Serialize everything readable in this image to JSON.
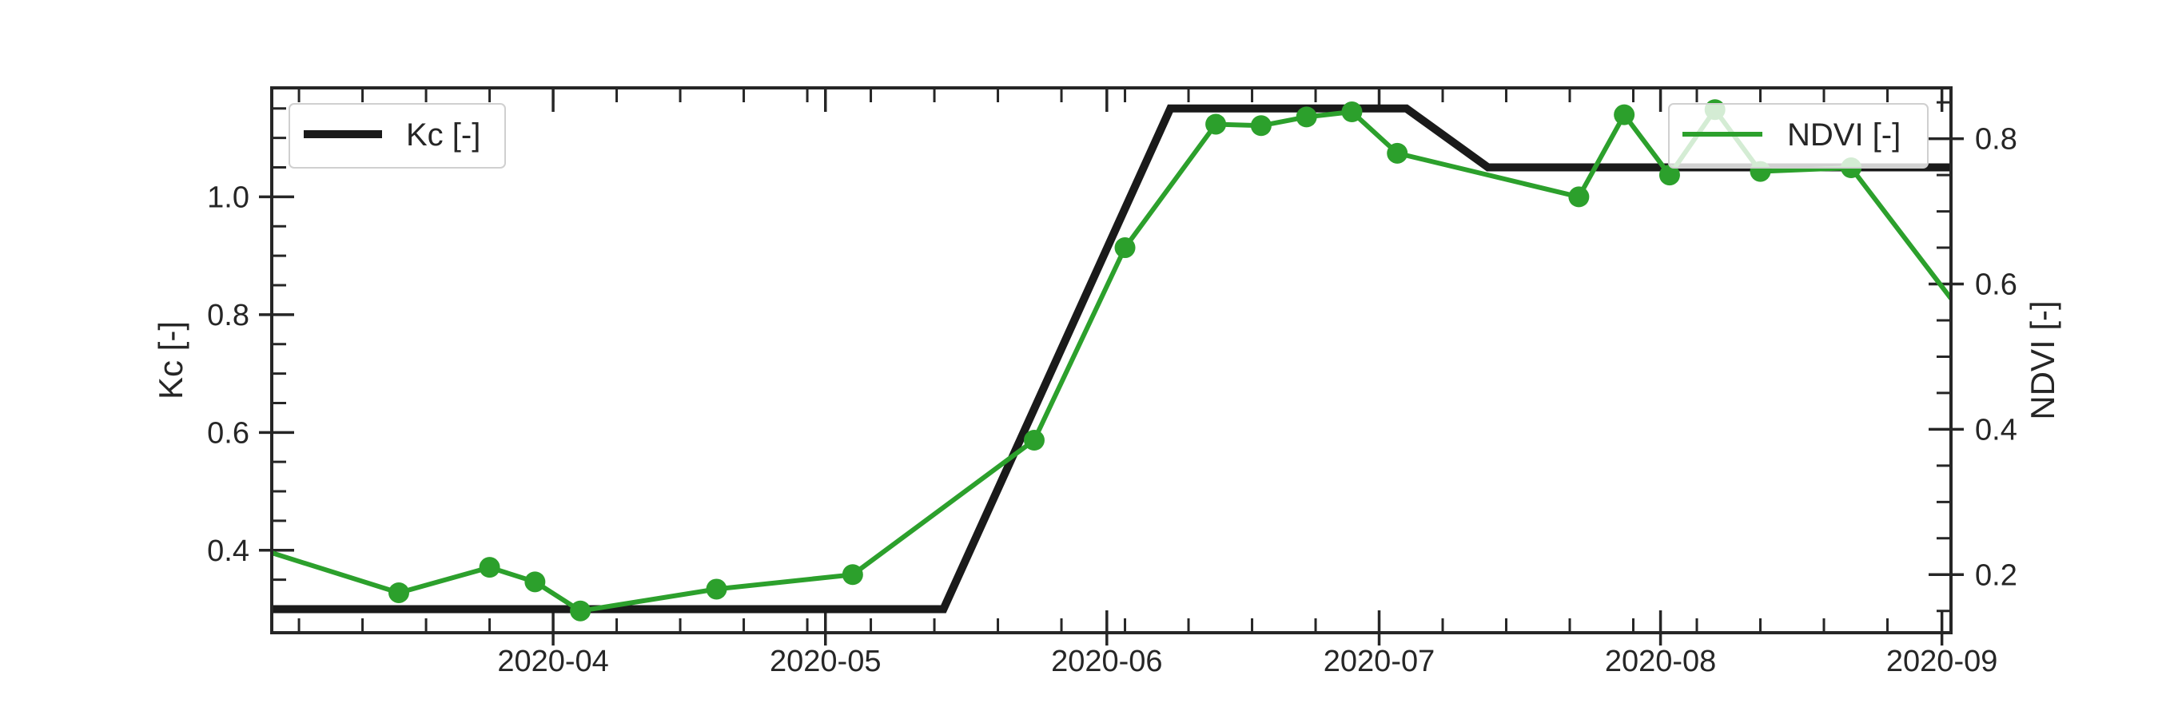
{
  "chart_data": {
    "type": "line",
    "x_axis": {
      "type": "date",
      "range": [
        "2020-03-01",
        "2020-09-02"
      ],
      "ticks": [
        "2020-04-01",
        "2020-05-01",
        "2020-06-01",
        "2020-07-01",
        "2020-08-01",
        "2020-09-01"
      ],
      "tick_labels": [
        "2020-04",
        "2020-05",
        "2020-06",
        "2020-07",
        "2020-08",
        "2020-09"
      ]
    },
    "y_left": {
      "label": "Kc [-]",
      "range": [
        0.26,
        1.185
      ],
      "ticks": [
        0.4,
        0.6,
        0.8,
        1.0
      ],
      "tick_labels": [
        "0.4",
        "0.6",
        "0.8",
        "1.0"
      ]
    },
    "y_right": {
      "label": "NDVI [-]",
      "range": [
        0.12,
        0.87
      ],
      "ticks": [
        0.2,
        0.4,
        0.6,
        0.8
      ],
      "tick_labels": [
        "0.2",
        "0.4",
        "0.6",
        "0.8"
      ]
    },
    "series": [
      {
        "name": "Kc [-]",
        "axis": "left",
        "color": "#1a1a1a",
        "markers": false,
        "x": [
          "2020-03-01",
          "2020-05-14",
          "2020-06-08",
          "2020-07-04",
          "2020-07-13",
          "2020-09-02"
        ],
        "y": [
          0.3,
          0.3,
          1.15,
          1.15,
          1.05,
          1.05
        ]
      },
      {
        "name": "NDVI [-]",
        "axis": "right",
        "color": "#2ca02c",
        "markers": true,
        "x": [
          "2020-03-01",
          "2020-03-15",
          "2020-03-25",
          "2020-03-30",
          "2020-04-04",
          "2020-04-19",
          "2020-05-04",
          "2020-05-24",
          "2020-06-03",
          "2020-06-13",
          "2020-06-18",
          "2020-06-23",
          "2020-06-28",
          "2020-07-03",
          "2020-07-23",
          "2020-07-28",
          "2020-08-02",
          "2020-08-07",
          "2020-08-12",
          "2020-08-22",
          "2020-09-02"
        ],
        "y": [
          0.23,
          0.175,
          0.21,
          0.19,
          0.15,
          0.18,
          0.2,
          0.385,
          0.65,
          0.82,
          0.818,
          0.83,
          0.837,
          0.78,
          0.72,
          0.833,
          0.75,
          0.84,
          0.755,
          0.76,
          0.58
        ],
        "marker_flags": [
          false,
          true,
          true,
          true,
          true,
          true,
          true,
          true,
          true,
          true,
          true,
          true,
          true,
          true,
          true,
          true,
          true,
          true,
          true,
          true,
          false
        ]
      }
    ],
    "legends": [
      {
        "position": "upper left",
        "entries": [
          "Kc [-]"
        ]
      },
      {
        "position": "upper right",
        "entries": [
          "NDVI [-]"
        ]
      }
    ],
    "grid": false
  }
}
